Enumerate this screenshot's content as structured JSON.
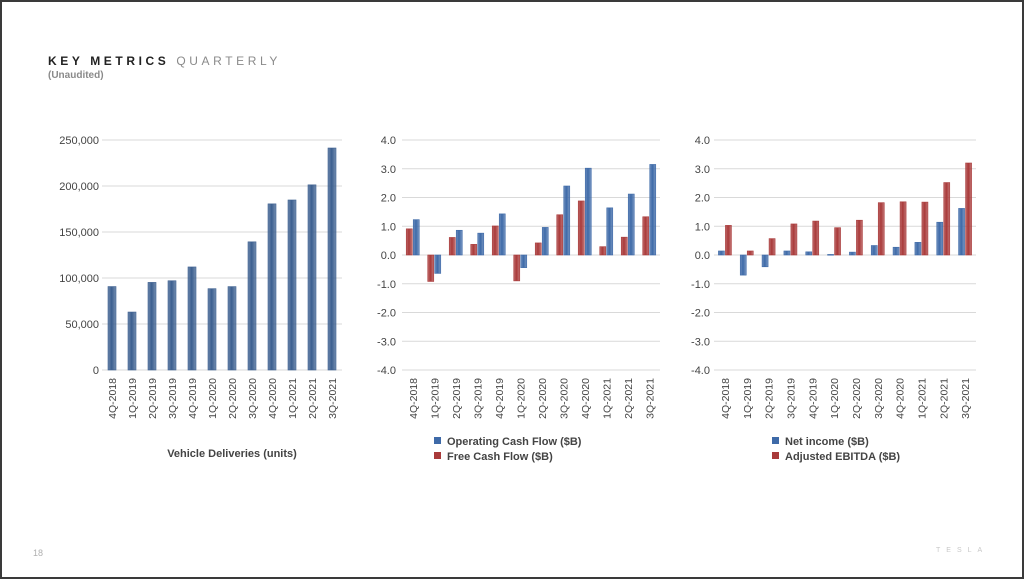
{
  "header": {
    "title_bold": "KEY METRICS",
    "title_light": "QUARTERLY",
    "subtitle": "(Unaudited)"
  },
  "footer": {
    "page_number": "18",
    "brand": "TESLA"
  },
  "colors": {
    "blue": "#3e6aa8",
    "red": "#a93a3a",
    "grid": "#d9d9d9",
    "text": "#444444"
  },
  "chart_data": [
    {
      "type": "bar",
      "title": "",
      "xlabel": "Vehicle Deliveries (units)",
      "ylabel": "",
      "ylim": [
        0,
        250000
      ],
      "ytick_values": [
        0,
        50000,
        100000,
        150000,
        200000,
        250000
      ],
      "ytick_labels": [
        "0",
        "50,000",
        "100,000",
        "150,000",
        "200,000",
        "250,000"
      ],
      "grid": true,
      "categories": [
        "4Q-2018",
        "1Q-2019",
        "2Q-2019",
        "3Q-2019",
        "4Q-2019",
        "1Q-2020",
        "2Q-2020",
        "3Q-2020",
        "4Q-2020",
        "1Q-2021",
        "2Q-2021",
        "3Q-2021"
      ],
      "series": [
        {
          "values": [
            90700,
            63000,
            95200,
            97000,
            112000,
            88400,
            90650,
            139300,
            180570,
            184800,
            201250,
            241300
          ],
          "color": "#3c5f8f"
        }
      ]
    },
    {
      "type": "bar",
      "title": "",
      "xlabel": "",
      "ylabel": "",
      "ylim": [
        -4,
        4
      ],
      "ytick_values": [
        -4,
        -3,
        -2,
        -1,
        0,
        1,
        2,
        3,
        4
      ],
      "ytick_labels": [
        "-4.0",
        "-3.0",
        "-2.0",
        "-1.0",
        "0.0",
        "1.0",
        "2.0",
        "3.0",
        "4.0"
      ],
      "grid": true,
      "legend_position": "bottom",
      "categories": [
        "4Q-2018",
        "1Q-2019",
        "2Q-2019",
        "3Q-2019",
        "4Q-2019",
        "1Q-2020",
        "2Q-2020",
        "3Q-2020",
        "4Q-2020",
        "1Q-2021",
        "2Q-2021",
        "3Q-2021"
      ],
      "series": [
        {
          "name": "Free Cash Flow ($B)",
          "values": [
            0.91,
            -0.92,
            0.61,
            0.37,
            1.01,
            -0.9,
            0.42,
            1.4,
            1.88,
            0.29,
            0.62,
            1.33
          ],
          "color": "#a93a3a"
        },
        {
          "name": "Operating Cash Flow ($B)",
          "values": [
            1.23,
            -0.64,
            0.86,
            0.76,
            1.43,
            -0.44,
            0.96,
            2.4,
            3.02,
            1.64,
            2.12,
            3.15
          ],
          "color": "#3e6aa8"
        }
      ],
      "legend_order": [
        1,
        0
      ]
    },
    {
      "type": "bar",
      "title": "",
      "xlabel": "",
      "ylabel": "",
      "ylim": [
        -4,
        4
      ],
      "ytick_values": [
        -4,
        -3,
        -2,
        -1,
        0,
        1,
        2,
        3,
        4
      ],
      "ytick_labels": [
        "-4.0",
        "-3.0",
        "-2.0",
        "-1.0",
        "0.0",
        "1.0",
        "2.0",
        "3.0",
        "4.0"
      ],
      "grid": true,
      "legend_position": "bottom",
      "categories": [
        "4Q-2018",
        "1Q-2019",
        "2Q-2019",
        "3Q-2019",
        "4Q-2019",
        "1Q-2020",
        "2Q-2020",
        "3Q-2020",
        "4Q-2020",
        "1Q-2021",
        "2Q-2021",
        "3Q-2021"
      ],
      "series": [
        {
          "name": "Net income ($B)",
          "values": [
            0.14,
            -0.7,
            -0.41,
            0.14,
            0.11,
            0.02,
            0.1,
            0.33,
            0.27,
            0.44,
            1.14,
            1.62
          ],
          "color": "#3e6aa8"
        },
        {
          "name": "Adjusted EBITDA ($B)",
          "values": [
            1.03,
            0.14,
            0.57,
            1.08,
            1.18,
            0.95,
            1.21,
            1.82,
            1.85,
            1.84,
            2.52,
            3.2
          ],
          "color": "#a93a3a"
        }
      ],
      "legend_order": [
        0,
        1
      ]
    }
  ]
}
